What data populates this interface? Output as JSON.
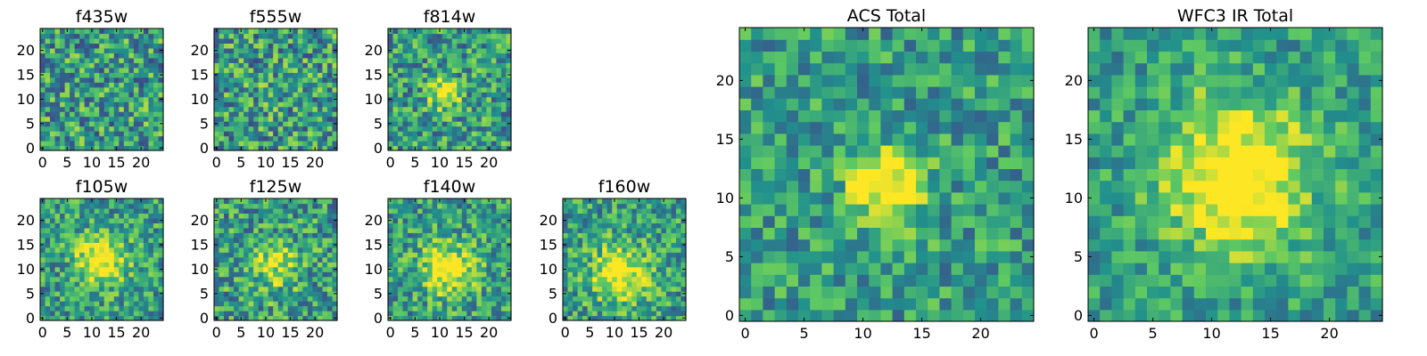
{
  "figure": {
    "colormap": [
      "#440154",
      "#3b528b",
      "#21918c",
      "#5ec962",
      "#fde725"
    ]
  },
  "chart_data": [
    {
      "type": "heatmap",
      "title": "f435w",
      "grid_size": [
        25,
        25
      ],
      "xlim": [
        0,
        24
      ],
      "ylim": [
        0,
        24
      ],
      "xticks": [
        "0",
        "5",
        "10",
        "15",
        "20"
      ],
      "yticks": [
        "0",
        "5",
        "10",
        "15",
        "20"
      ],
      "seed": 11,
      "blob": {
        "cx": 12,
        "cy": 11,
        "r": 3.0,
        "amp": 0.0
      },
      "noise": 0.55
    },
    {
      "type": "heatmap",
      "title": "f555w",
      "grid_size": [
        25,
        25
      ],
      "xlim": [
        0,
        24
      ],
      "ylim": [
        0,
        24
      ],
      "xticks": [
        "0",
        "5",
        "10",
        "15",
        "20"
      ],
      "yticks": [
        "0",
        "5",
        "10",
        "15",
        "20"
      ],
      "seed": 23,
      "blob": {
        "cx": 12,
        "cy": 11,
        "r": 3.0,
        "amp": 0.05
      },
      "noise": 0.55
    },
    {
      "type": "heatmap",
      "title": "f814w",
      "grid_size": [
        25,
        25
      ],
      "xlim": [
        0,
        24
      ],
      "ylim": [
        0,
        24
      ],
      "xticks": [
        "0",
        "5",
        "10",
        "15",
        "20"
      ],
      "yticks": [
        "0",
        "5",
        "10",
        "15",
        "20"
      ],
      "seed": 37,
      "blob": {
        "cx": 11,
        "cy": 11,
        "r": 2.0,
        "amp": 0.55
      },
      "noise": 0.5
    },
    {
      "type": "heatmap",
      "title": "f105w",
      "grid_size": [
        25,
        25
      ],
      "xlim": [
        0,
        24
      ],
      "ylim": [
        0,
        24
      ],
      "xticks": [
        "0",
        "5",
        "10",
        "15",
        "20"
      ],
      "yticks": [
        "0",
        "5",
        "10",
        "15",
        "20"
      ],
      "seed": 41,
      "blob": {
        "cx": 12,
        "cy": 12,
        "r": 3.5,
        "amp": 0.55
      },
      "noise": 0.45
    },
    {
      "type": "heatmap",
      "title": "f125w",
      "grid_size": [
        25,
        25
      ],
      "xlim": [
        0,
        24
      ],
      "ylim": [
        0,
        24
      ],
      "xticks": [
        "0",
        "5",
        "10",
        "15",
        "20"
      ],
      "yticks": [
        "0",
        "5",
        "10",
        "15",
        "20"
      ],
      "seed": 53,
      "blob": {
        "cx": 12,
        "cy": 11,
        "r": 3.5,
        "amp": 0.35
      },
      "noise": 0.5
    },
    {
      "type": "heatmap",
      "title": "f140w",
      "grid_size": [
        25,
        25
      ],
      "xlim": [
        0,
        24
      ],
      "ylim": [
        0,
        24
      ],
      "xticks": [
        "0",
        "5",
        "10",
        "15",
        "20"
      ],
      "yticks": [
        "0",
        "5",
        "10",
        "15",
        "20"
      ],
      "seed": 67,
      "blob": {
        "cx": 12,
        "cy": 10,
        "r": 4.0,
        "amp": 0.45
      },
      "noise": 0.45
    },
    {
      "type": "heatmap",
      "title": "f160w",
      "grid_size": [
        25,
        25
      ],
      "xlim": [
        0,
        24
      ],
      "ylim": [
        0,
        24
      ],
      "xticks": [
        "0",
        "5",
        "10",
        "15",
        "20"
      ],
      "yticks": [
        "0",
        "5",
        "10",
        "15",
        "20"
      ],
      "seed": 79,
      "blob": {
        "cx": 11,
        "cy": 9,
        "r": 4.0,
        "amp": 0.55
      },
      "noise": 0.45
    },
    {
      "type": "heatmap",
      "title": "ACS Total",
      "grid_size": [
        25,
        25
      ],
      "xlim": [
        0,
        24
      ],
      "ylim": [
        0,
        24
      ],
      "xticks": [
        "0",
        "5",
        "10",
        "15",
        "20"
      ],
      "yticks": [
        "0",
        "5",
        "10",
        "15",
        "20"
      ],
      "seed": 97,
      "blob": {
        "cx": 12,
        "cy": 11,
        "r": 2.2,
        "amp": 0.6
      },
      "noise": 0.4
    },
    {
      "type": "heatmap",
      "title": "WFC3 IR Total",
      "grid_size": [
        25,
        25
      ],
      "xlim": [
        0,
        24
      ],
      "ylim": [
        0,
        24
      ],
      "xticks": [
        "0",
        "5",
        "10",
        "15",
        "20"
      ],
      "yticks": [
        "0",
        "5",
        "10",
        "15",
        "20"
      ],
      "seed": 101,
      "blob": {
        "cx": 12,
        "cy": 12,
        "r": 4.5,
        "amp": 0.6
      },
      "noise": 0.35
    }
  ]
}
